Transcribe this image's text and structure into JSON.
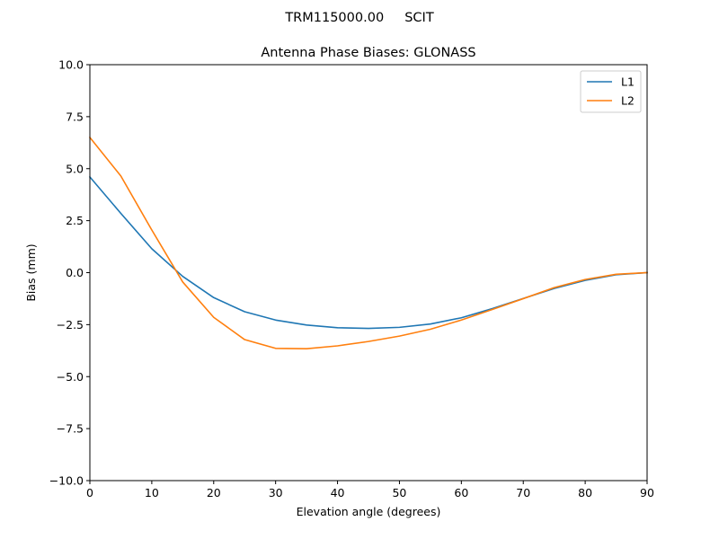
{
  "figure": {
    "suptitle": "TRM115000.00     SCIT"
  },
  "chart_data": {
    "type": "line",
    "title": "Antenna Phase Biases: GLONASS",
    "xlabel": "Elevation angle (degrees)",
    "ylabel": "Bias (mm)",
    "xlim": [
      0,
      90
    ],
    "ylim": [
      -10,
      10
    ],
    "x_ticks": [
      0,
      10,
      20,
      30,
      40,
      50,
      60,
      70,
      80,
      90
    ],
    "x_tick_labels": [
      "0",
      "10",
      "20",
      "30",
      "40",
      "50",
      "60",
      "70",
      "80",
      "90"
    ],
    "y_ticks": [
      -10,
      -7.5,
      -5,
      -2.5,
      0,
      2.5,
      5,
      7.5,
      10
    ],
    "y_tick_labels": [
      "−10.0",
      "−7.5",
      "−5.0",
      "−2.5",
      "0.0",
      "2.5",
      "5.0",
      "7.5",
      "10.0"
    ],
    "grid": false,
    "legend_position": "top-right",
    "x": [
      0,
      5,
      10,
      15,
      20,
      25,
      30,
      35,
      40,
      45,
      50,
      55,
      60,
      65,
      70,
      75,
      80,
      85,
      90
    ],
    "series": [
      {
        "name": "L1",
        "color": "#1f77b4",
        "values": [
          4.6,
          2.85,
          1.15,
          -0.18,
          -1.2,
          -1.88,
          -2.28,
          -2.52,
          -2.65,
          -2.68,
          -2.63,
          -2.47,
          -2.17,
          -1.73,
          -1.24,
          -0.76,
          -0.37,
          -0.1,
          0.0
        ]
      },
      {
        "name": "L2",
        "color": "#ff7f0e",
        "values": [
          6.5,
          4.65,
          2.05,
          -0.45,
          -2.15,
          -3.22,
          -3.64,
          -3.66,
          -3.52,
          -3.31,
          -3.05,
          -2.72,
          -2.28,
          -1.77,
          -1.25,
          -0.72,
          -0.33,
          -0.08,
          0.0
        ]
      }
    ]
  }
}
